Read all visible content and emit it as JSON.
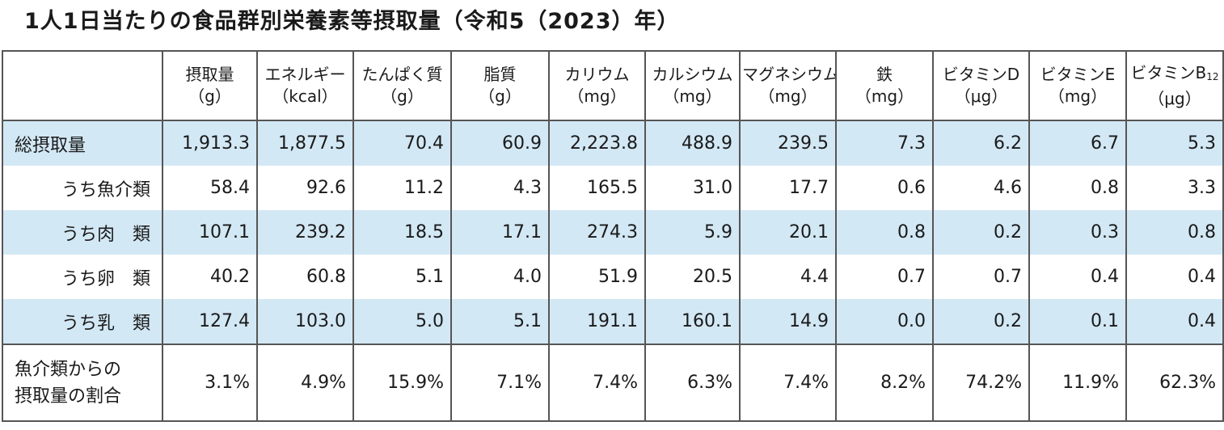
{
  "title": "1人1日当たりの食品群別栄養素等摂取量（令和5（2023）年）",
  "columns": [
    {
      "name": "摂取量",
      "unit": "（g）"
    },
    {
      "name": "エネルギー",
      "unit": "（kcal）"
    },
    {
      "name": "たんぱく質",
      "unit": "（g）"
    },
    {
      "name": "脂質",
      "unit": "（g）"
    },
    {
      "name": "カリウム",
      "unit": "（mg）"
    },
    {
      "name": "カルシウム",
      "unit": "（mg）"
    },
    {
      "name": "マグネシウム",
      "unit": "（mg）"
    },
    {
      "name": "鉄",
      "unit": "（mg）"
    },
    {
      "name": "ビタミンD",
      "unit": "（μg）"
    },
    {
      "name": "ビタミンE",
      "unit": "（mg）"
    },
    {
      "name": "ビタミンB",
      "sub": "12",
      "unit": "（μg）"
    }
  ],
  "rows": [
    {
      "label": "総摂取量",
      "values": [
        "1,913.3",
        "1,877.5",
        "70.4",
        "60.9",
        "2,223.8",
        "488.9",
        "239.5",
        "7.3",
        "6.2",
        "6.7",
        "5.3"
      ]
    },
    {
      "label": "うち魚介類",
      "values": [
        "58.4",
        "92.6",
        "11.2",
        "4.3",
        "165.5",
        "31.0",
        "17.7",
        "0.6",
        "4.6",
        "0.8",
        "3.3"
      ]
    },
    {
      "label": "うち肉　類",
      "values": [
        "107.1",
        "239.2",
        "18.5",
        "17.1",
        "274.3",
        "5.9",
        "20.1",
        "0.8",
        "0.2",
        "0.3",
        "0.8"
      ]
    },
    {
      "label": "うち卵　類",
      "values": [
        "40.2",
        "60.8",
        "5.1",
        "4.0",
        "51.9",
        "20.5",
        "4.4",
        "0.7",
        "0.7",
        "0.4",
        "0.4"
      ]
    },
    {
      "label": "うち乳　類",
      "values": [
        "127.4",
        "103.0",
        "5.0",
        "5.1",
        "191.1",
        "160.1",
        "14.9",
        "0.0",
        "0.2",
        "0.1",
        "0.4"
      ]
    }
  ],
  "footer": {
    "label_line1": "魚介類からの",
    "label_line2": "摂取量の割合",
    "values": [
      "3.1%",
      "4.9%",
      "15.9%",
      "7.1%",
      "7.4%",
      "6.3%",
      "7.4%",
      "8.2%",
      "74.2%",
      "11.9%",
      "62.3%"
    ]
  },
  "colors": {
    "row_highlight": "#d3e8f5",
    "border": "#555555"
  }
}
